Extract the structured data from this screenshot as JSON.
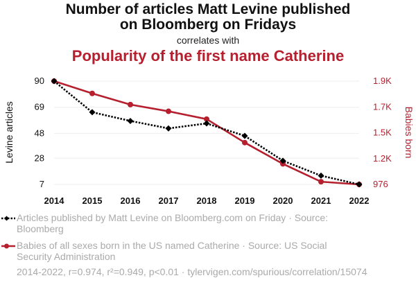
{
  "title_line1": "Number of articles Matt Levine published",
  "title_line2": "on Bloomberg on Fridays",
  "correlates": "correlates with",
  "title2": "Popularity of the first name Catherine",
  "legend": [
    {
      "text": "Articles published by Matt Levine on Bloomberg.com on Friday · Source: Bloomberg",
      "color": "#000000"
    },
    {
      "text": "Babies of all sexes born in the US named Catherine · Source: US Social Security Administration",
      "color": "#b51f2e"
    }
  ],
  "footer": "2014-2022, r=0.974, r²=0.949, p<0.01 · tylervigen.com/spurious/correlation/15074",
  "chart_data": {
    "type": "line",
    "x": [
      2014,
      2015,
      2016,
      2017,
      2018,
      2019,
      2020,
      2021,
      2022
    ],
    "y_left_label": "Levine articles",
    "y_right_label": "Babies born",
    "y_left_ticks": [
      7,
      28,
      48,
      69,
      90
    ],
    "y_left_range": [
      7,
      90
    ],
    "y_right_ticks": [
      "976",
      "1.2K",
      "1.5K",
      "1.7K",
      "1.9K"
    ],
    "y_right_tick_values": [
      976,
      1207,
      1438,
      1669,
      1900
    ],
    "y_right_range": [
      976,
      1900
    ],
    "series": [
      {
        "axis": "left",
        "color": "#000000",
        "style": "dotted",
        "marker": "diamond",
        "values": [
          90,
          65,
          58,
          52,
          56,
          46,
          26,
          14,
          7
        ]
      },
      {
        "axis": "right",
        "color": "#b51f2e",
        "style": "solid",
        "marker": "circle",
        "values": [
          1900,
          1790,
          1690,
          1630,
          1560,
          1350,
          1160,
          1000,
          976
        ]
      }
    ],
    "grid": true
  }
}
